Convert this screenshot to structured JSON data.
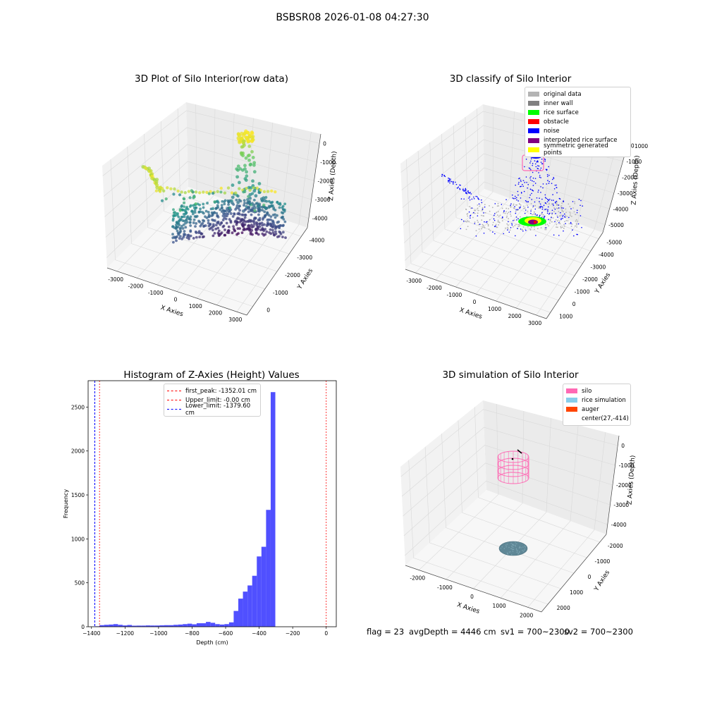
{
  "suptitle": "BSBSR08 2026-01-08 04:27:30",
  "colors": {
    "hist_bar": "#5050ff",
    "first_peak": "#ff0000",
    "upper_limit": "#ff0000",
    "lower_limit": "#0000ff"
  },
  "chart_data": [
    {
      "type": "scatter",
      "projection": "3d",
      "title": "3D Plot of Silo Interior(row data)",
      "xlabel": "X Axies",
      "ylabel": "Y Axies",
      "zlabel": "Z Axies (Depth)",
      "x_ticks": [
        "-3000",
        "-2000",
        "-1000",
        "0",
        "1000",
        "2000",
        "3000"
      ],
      "y_ticks": [
        "0",
        "-1000",
        "-2000",
        "-3000",
        "-4000"
      ],
      "z_ticks": [
        "0",
        "-1000",
        "-2000",
        "-3000",
        "-4000"
      ],
      "colormap": "viridis",
      "grid": true
    },
    {
      "type": "scatter",
      "projection": "3d",
      "title": "3D classify of Silo Interior",
      "xlabel": "X Axies",
      "ylabel": "Y Axies",
      "zlabel": "Z Axies (Depth)",
      "x_ticks": [
        "-3000",
        "-2000",
        "-1000",
        "0",
        "1000",
        "2000",
        "3000"
      ],
      "y_ticks": [
        "1000",
        "0",
        "-1000",
        "-2000",
        "-3000",
        "-4000",
        "-5000"
      ],
      "z_ticks": [
        "0",
        "-1000",
        "-2000",
        "-3000",
        "-4000",
        "-5000"
      ],
      "z_top_label": "1000",
      "grid": true,
      "legend_position": "top-right",
      "legend": [
        {
          "label": "original data",
          "color": "#b4b4b4"
        },
        {
          "label": "inner wall",
          "color": "#808080"
        },
        {
          "label": "rice surface",
          "color": "#00ff00"
        },
        {
          "label": "obstacle",
          "color": "#ff0000"
        },
        {
          "label": "noise",
          "color": "#0000ff"
        },
        {
          "label": "interpolated rice surface",
          "color": "#800080"
        },
        {
          "label": "symmetric generated points",
          "color": "#ffff00"
        }
      ]
    },
    {
      "type": "bar",
      "title": "Histogram of Z-Axies (Height) Values",
      "xlabel": "Depth (cm)",
      "ylabel": "Frequency",
      "xlim": [
        -1420,
        60
      ],
      "ylim": [
        0,
        2800
      ],
      "x_ticks": [
        -1400,
        -1200,
        -1000,
        -800,
        -600,
        -400,
        -200,
        0
      ],
      "x_tick_labels": [
        "−1400",
        "−1200",
        "−1000",
        "−800",
        "−600",
        "−400",
        "−200",
        "0"
      ],
      "y_ticks": [
        0,
        500,
        1000,
        1500,
        2000,
        2500
      ],
      "bin_width": 27.6,
      "bins_start": -1380,
      "values": [
        4,
        5,
        8,
        12,
        14,
        14,
        15,
        15,
        14,
        17,
        18,
        22,
        19,
        16,
        14,
        16,
        17,
        18,
        12,
        10,
        10,
        11,
        10,
        12,
        11,
        13,
        13,
        13,
        13,
        12,
        12,
        14,
        15,
        14,
        13,
        12,
        14,
        15,
        16,
        17,
        20,
        21,
        22,
        24,
        26,
        28,
        30,
        32,
        36,
        38,
        40,
        44,
        50,
        52,
        48,
        45,
        40,
        38,
        35,
        32,
        30,
        28,
        27,
        29,
        34,
        41,
        43,
        45,
        42,
        40,
        36,
        32,
        28,
        24,
        22,
        20,
        21,
        22,
        24,
        26,
        28,
        30,
        33,
        38,
        40,
        42,
        42,
        40,
        38,
        35,
        32,
        30,
        28,
        27,
        30,
        35,
        40,
        48,
        60,
        75,
        90,
        110,
        130,
        145,
        160,
        175,
        185,
        180
      ],
      "bin_values": [
        5,
        18,
        22,
        25,
        30,
        22,
        15,
        20,
        12,
        13,
        13,
        15,
        14,
        14,
        16,
        18,
        18,
        22,
        25,
        30,
        35,
        28,
        40,
        40,
        55,
        45,
        30,
        25,
        30,
        50,
        180,
        320,
        400,
        470,
        580,
        800,
        910,
        1330,
        2670
      ],
      "legend_position": "top-center",
      "legend": [
        {
          "label": "first_peak: -1352.01 cm",
          "value": -1352.01,
          "color": "#ff0000"
        },
        {
          "label": "Upper_limit: -0.00 cm",
          "value": 0,
          "color": "#ff0000"
        },
        {
          "label": "Lower_limit: -1379.60 cm",
          "value": -1379.6,
          "color": "#0000ff"
        }
      ]
    },
    {
      "type": "scatter",
      "projection": "3d",
      "title": "3D simulation of Silo Interior",
      "xlabel": "X Axies",
      "ylabel": "Y Axies",
      "zlabel": "Z Axies (Depth)",
      "x_ticks": [
        "-2000",
        "-1000",
        "0",
        "1000",
        "2000"
      ],
      "y_ticks": [
        "2000",
        "1000",
        "0",
        "-1000",
        "-2000"
      ],
      "z_ticks": [
        "0",
        "-1000",
        "-2000",
        "-3000",
        "-4000"
      ],
      "grid": true,
      "legend_position": "top-right",
      "legend": [
        {
          "label": "silo",
          "color": "#ff69b4"
        },
        {
          "label": "rice simulation",
          "color": "#87ceeb"
        },
        {
          "label": "auger",
          "color": "#ff4500"
        },
        {
          "label": "center(27,-414)",
          "color": ""
        }
      ]
    }
  ],
  "footer": {
    "flag": "flag = 23",
    "avg_depth": "avgDepth = 4446 cm",
    "sv1": "sv1 = 700~2300",
    "sv2": "sv2 = 700~2300"
  }
}
